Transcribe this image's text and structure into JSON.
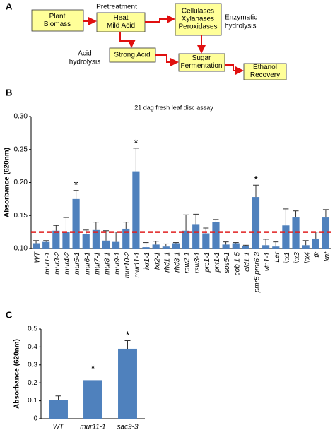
{
  "diagram": {
    "panel": "A",
    "nodes": [
      {
        "label": [
          "Plant",
          "Biomass"
        ]
      },
      {
        "label": [
          "Heat",
          "Mild Acid"
        ]
      },
      {
        "label": [
          "Cellulases",
          "Xylanases",
          "Peroxidases"
        ]
      },
      {
        "label": [
          "Strong Acid"
        ]
      },
      {
        "label": [
          "Sugar",
          "Fermentation"
        ]
      },
      {
        "label": [
          "Ethanol",
          "Recovery"
        ]
      }
    ],
    "notes": [
      [
        "Pretreatment"
      ],
      [
        "Enzymatic",
        "hydrolysis"
      ],
      [
        "Acid",
        "hydrolysis"
      ]
    ]
  },
  "chart_data": [
    {
      "type": "bar",
      "panel": "B",
      "title": "21 dag fresh leaf disc  assay",
      "ylabel": "Absorbance (620nm)",
      "categories": [
        "WT",
        "mur1-1",
        "mur3-2",
        "mur4-2",
        "mur5-1",
        "mur6-1",
        "mur7-1",
        "mur8-1",
        "mur9-1",
        "mur10-2",
        "mur11-1",
        "ixr1-1",
        "ixr2-1",
        "rhd1-1",
        "rhd3-1",
        "rsw2-1",
        "rsw3-1",
        "prc1-1",
        "pnt1-1",
        "sos5-1",
        "cob 1-5",
        "eld1-1",
        "pmr5 pmr6-3",
        "vtc1-1",
        "Ler",
        "irx1",
        "irx3",
        "irx4",
        "fk",
        "knf"
      ],
      "values": [
        0.108,
        0.11,
        0.127,
        0.125,
        0.175,
        0.122,
        0.128,
        0.112,
        0.11,
        0.13,
        0.217,
        0.102,
        0.106,
        0.103,
        0.108,
        0.127,
        0.137,
        0.123,
        0.14,
        0.106,
        0.108,
        0.104,
        0.178,
        0.105,
        0.103,
        0.135,
        0.147,
        0.105,
        0.115,
        0.147
      ],
      "errors": [
        0.004,
        0.002,
        0.008,
        0.022,
        0.013,
        0.006,
        0.012,
        0.015,
        0.015,
        0.01,
        0.035,
        0.007,
        0.005,
        0.004,
        0.001,
        0.024,
        0.015,
        0.008,
        0.004,
        0.004,
        0.001,
        0.001,
        0.018,
        0.009,
        0.007,
        0.025,
        0.01,
        0.007,
        0.01,
        0.012
      ],
      "significance": [
        null,
        null,
        null,
        null,
        "*",
        null,
        null,
        null,
        null,
        null,
        "*",
        null,
        null,
        null,
        null,
        null,
        null,
        null,
        null,
        null,
        null,
        null,
        "*",
        null,
        null,
        null,
        null,
        null,
        null,
        null
      ],
      "reference_line": 0.125,
      "reference_color": "#e02020",
      "color": "#4f81bd",
      "ylim": [
        0.1,
        0.3
      ],
      "yticks": [
        {
          "value": 0.1,
          "label": "0.10"
        },
        0.15,
        {
          "value": 0.2,
          "label": "0.20"
        },
        0.25,
        {
          "value": 0.3,
          "label": "0.30"
        }
      ]
    },
    {
      "type": "bar",
      "panel": "C",
      "ylabel": "Absorbance (620nm)",
      "categories": [
        "WT",
        "mur11-1",
        "sac9-3"
      ],
      "values": [
        0.105,
        0.215,
        0.39
      ],
      "errors": [
        0.022,
        0.035,
        0.045
      ],
      "significance": [
        null,
        "*",
        "*"
      ],
      "color": "#4f81bd",
      "ylim": [
        0,
        0.5
      ],
      "yticks": [
        0,
        0.1,
        0.2,
        0.3,
        0.4,
        0.5
      ]
    }
  ]
}
